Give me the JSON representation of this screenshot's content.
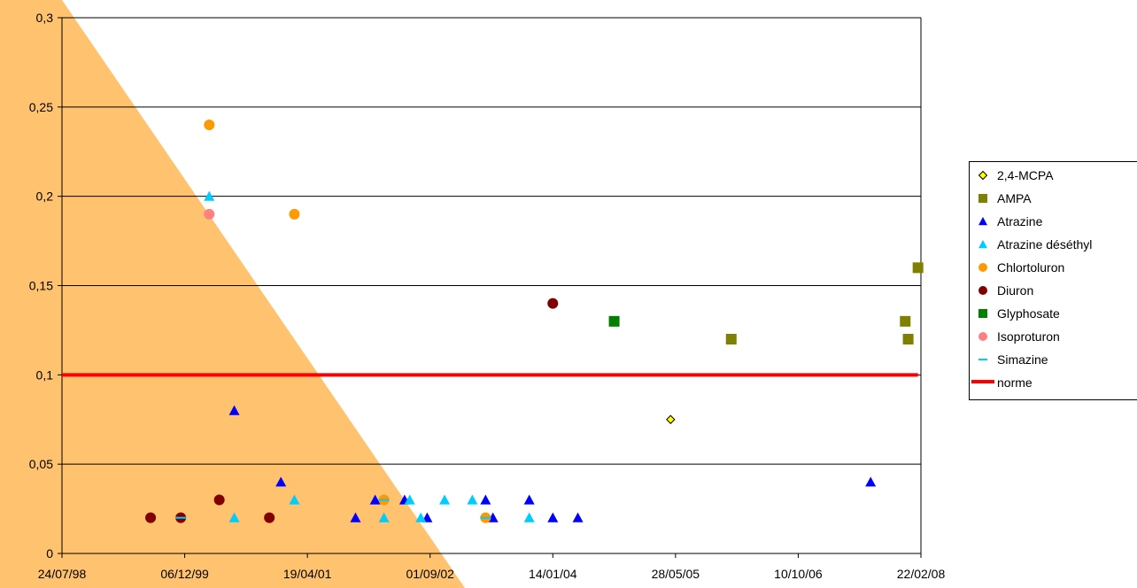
{
  "chart_data": {
    "type": "scatter",
    "title": "",
    "xlabel": "",
    "ylabel": "",
    "x_axis": {
      "kind": "date",
      "range": [
        "1998-07-24",
        "2008-02-22"
      ],
      "tick_values": [
        "1998-07-24",
        "1999-12-06",
        "2001-04-19",
        "2002-09-01",
        "2004-01-14",
        "2005-05-28",
        "2006-10-10",
        "2008-02-22"
      ],
      "tick_labels": [
        "24/07/98",
        "06/12/99",
        "19/04/01",
        "01/09/02",
        "14/01/04",
        "28/05/05",
        "10/10/06",
        "22/02/08"
      ]
    },
    "y_axis": {
      "range": [
        0,
        0.3
      ],
      "tick_values": [
        0,
        0.05,
        0.1,
        0.15,
        0.2,
        0.25,
        0.3
      ],
      "tick_labels": [
        "0",
        "0,05",
        "0,1",
        "0,15",
        "0,2",
        "0,25",
        "0,3"
      ]
    },
    "grid": "horizontal",
    "legend_position": "right",
    "series": [
      {
        "name": "2,4-MCPA",
        "marker": "diamond",
        "color": "#ffff00",
        "edge": "#000000",
        "points": [
          [
            "2005-05-08",
            0.075
          ]
        ]
      },
      {
        "name": "AMPA",
        "marker": "square",
        "color": "#808000",
        "points": [
          [
            "2006-01-10",
            0.12
          ],
          [
            "2007-12-20",
            0.13
          ],
          [
            "2008-01-01",
            0.12
          ],
          [
            "2008-02-10",
            0.16
          ]
        ]
      },
      {
        "name": "Atrazine",
        "marker": "triangle",
        "color": "#0000ff",
        "points": [
          [
            "2000-06-25",
            0.08
          ],
          [
            "2001-01-01",
            0.04
          ],
          [
            "2001-11-01",
            0.02
          ],
          [
            "2002-01-20",
            0.03
          ],
          [
            "2002-05-20",
            0.03
          ],
          [
            "2002-08-20",
            0.02
          ],
          [
            "2003-04-15",
            0.03
          ],
          [
            "2003-05-15",
            0.02
          ],
          [
            "2003-10-10",
            0.03
          ],
          [
            "2004-01-14",
            0.02
          ],
          [
            "2004-04-25",
            0.02
          ],
          [
            "2007-08-01",
            0.04
          ]
        ]
      },
      {
        "name": "Atrazine déséthyl",
        "marker": "triangle",
        "color": "#00ccff",
        "points": [
          [
            "2000-03-15",
            0.2
          ],
          [
            "2000-06-25",
            0.02
          ],
          [
            "2001-02-25",
            0.03
          ],
          [
            "2002-02-25",
            0.02
          ],
          [
            "2002-06-10",
            0.03
          ],
          [
            "2002-07-25",
            0.02
          ],
          [
            "2002-10-30",
            0.03
          ],
          [
            "2003-02-20",
            0.03
          ],
          [
            "2003-10-10",
            0.02
          ]
        ]
      },
      {
        "name": "Chlortoluron",
        "marker": "circle",
        "color": "#ff9900",
        "points": [
          [
            "2000-03-15",
            0.24
          ],
          [
            "2001-02-25",
            0.19
          ],
          [
            "2002-02-25",
            0.03
          ],
          [
            "2003-04-15",
            0.02
          ]
        ]
      },
      {
        "name": "Diuron",
        "marker": "circle",
        "color": "#800000",
        "points": [
          [
            "1999-07-20",
            0.02
          ],
          [
            "1999-11-20",
            0.02
          ],
          [
            "2000-04-25",
            0.03
          ],
          [
            "2000-11-15",
            0.02
          ],
          [
            "2004-01-14",
            0.14
          ]
        ]
      },
      {
        "name": "Glyphosate",
        "marker": "square",
        "color": "#008000",
        "points": [
          [
            "2004-09-20",
            0.13
          ]
        ]
      },
      {
        "name": "Isoproturon",
        "marker": "circle",
        "color": "#ff8080",
        "points": [
          [
            "2000-03-15",
            0.19
          ]
        ]
      },
      {
        "name": "Simazine",
        "marker": "dash",
        "color": "#00ccff",
        "points": [
          [
            "1999-11-20",
            0.02
          ],
          [
            "2002-02-25",
            0.03
          ],
          [
            "2003-04-15",
            0.02
          ]
        ]
      },
      {
        "name": "norme",
        "marker": "line",
        "color": "#ff0000",
        "points": [
          [
            "1998-07-24",
            0.1
          ],
          [
            "2008-02-10",
            0.1
          ]
        ]
      }
    ],
    "overlay": {
      "type": "diagonal-triangle",
      "color": "#ffc26e",
      "position": "left"
    }
  }
}
